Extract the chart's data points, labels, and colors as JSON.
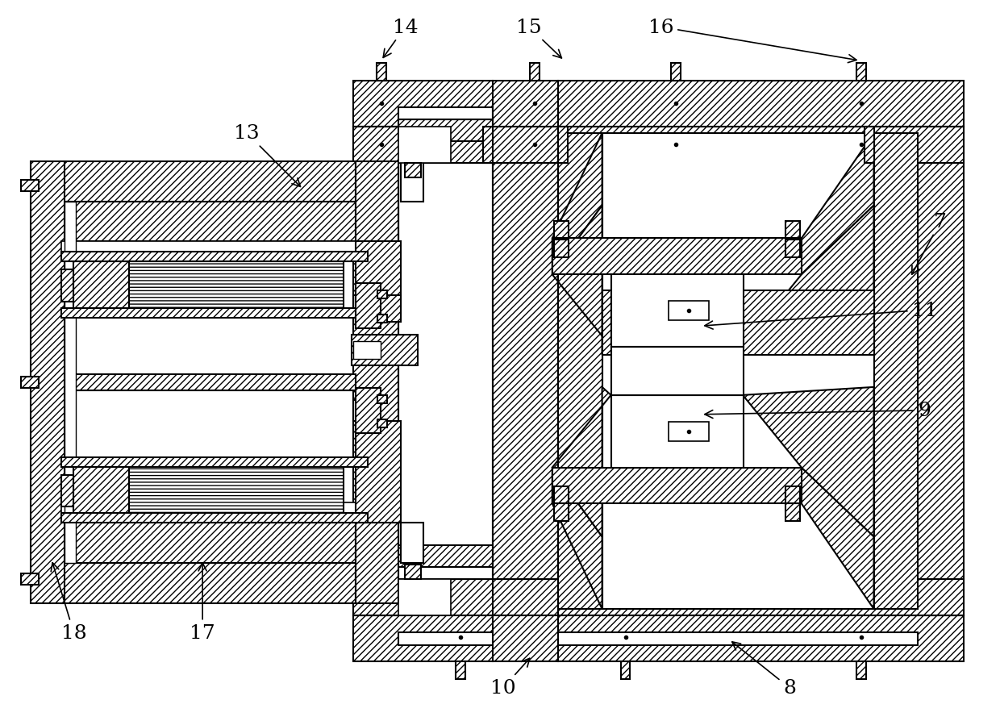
{
  "bg_color": "#ffffff",
  "lw": 1.5,
  "fig_width": 12.4,
  "fig_height": 8.95,
  "dpi": 100
}
